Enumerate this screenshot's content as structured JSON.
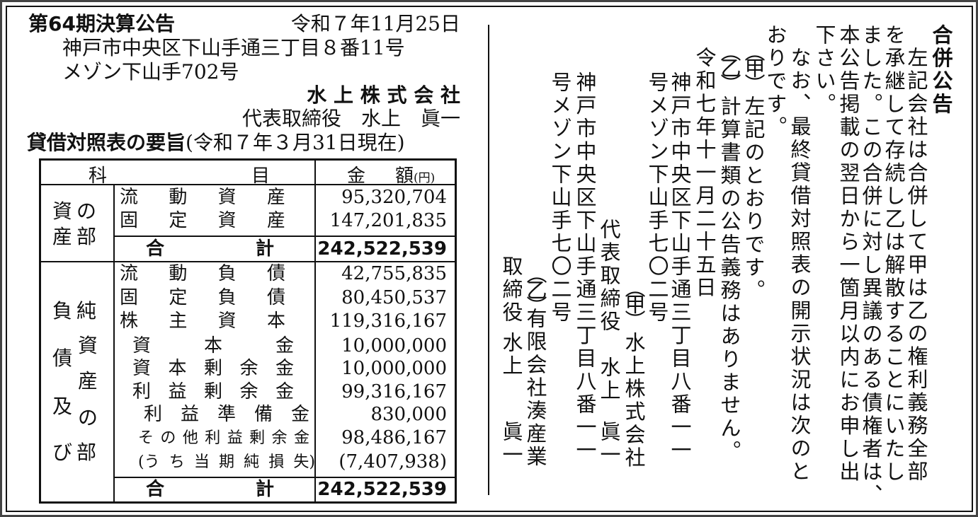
{
  "settlement_notice": {
    "title": "第64期決算公告",
    "date": "令和７年11月25日",
    "address_line1": "神戸市中央区下山手通三丁目８番11号",
    "address_line2": "メゾン下山手702号",
    "company": "水 上 株 式 会 社",
    "representative": "代表取締役　水上　眞一",
    "bs_title": "貸借対照表の要旨",
    "bs_date": "(令和７年３月31日現在)"
  },
  "table": {
    "header": {
      "kamoku_1": "科",
      "kamoku_2": "目",
      "amount_1": "金",
      "amount_2": "額",
      "unit": "(円)"
    },
    "assets_section": [
      "資",
      "の",
      "産",
      "部"
    ],
    "liabilities_section": [
      "負",
      "純",
      "資",
      "債",
      "産",
      "及",
      "の",
      "び",
      "部"
    ],
    "rows": [
      {
        "label": [
          "流",
          "動",
          "資",
          "産"
        ],
        "value": "95,320,704"
      },
      {
        "label": [
          "固",
          "定",
          "資",
          "産"
        ],
        "value": "147,201,835"
      },
      {
        "label": [
          "合",
          "計"
        ],
        "value": "242,522,539",
        "total": true
      },
      {
        "label": [
          "流",
          "動",
          "負",
          "債"
        ],
        "value": "42,755,835"
      },
      {
        "label": [
          "固",
          "定",
          "負",
          "債"
        ],
        "value": "80,450,537"
      },
      {
        "label": [
          "株",
          "主",
          "資",
          "本"
        ],
        "value": "119,316,167"
      },
      {
        "label": [
          "資",
          "本",
          "金"
        ],
        "value": "10,000,000"
      },
      {
        "label": [
          "資",
          "本",
          "剰",
          "余",
          "金"
        ],
        "value": "10,000,000"
      },
      {
        "label": [
          "利",
          "益",
          "剰",
          "余",
          "金"
        ],
        "value": "99,316,167"
      },
      {
        "label": [
          "利",
          "益",
          "準",
          "備",
          "金"
        ],
        "value": "830,000"
      },
      {
        "label": [
          "そ",
          "の",
          "他",
          "利",
          "益",
          "剰",
          "余",
          "金"
        ],
        "value": "98,486,167"
      },
      {
        "label": [
          "(う",
          "ち",
          "当",
          "期",
          "純",
          "損",
          "失)"
        ],
        "value": "(7,407,938)"
      },
      {
        "label": [
          "合",
          "計"
        ],
        "value": "242,522,539",
        "total": true
      }
    ]
  },
  "merger_notice": {
    "title": "合併公告",
    "body": [
      "左記会社は合併して甲は乙の権利義務全部",
      "を承継して存続し乙は解散することにいたし",
      "ました。この合併に対し異議のある債権者は、",
      "本公告掲載の翌日から一箇月以内にお申し出",
      "下さい。",
      "なお、最終貸借対照表の開示状況は次のと",
      "おりです。"
    ],
    "party_a_mark": "（甲）",
    "party_a_status": "左記のとおりです。",
    "party_b_mark": "（乙）",
    "party_b_status": "計算書類の公告義務はありません。",
    "date": "令和七年十一月二十五日",
    "party_a": {
      "address1": "神戸市中央区下山手通三丁目八番一一",
      "address2": "号メゾン下山手七〇二号",
      "mark": "（甲）",
      "company": "水上株式会社",
      "title": "代表取締役",
      "name_family": "水上",
      "name_given": "眞一"
    },
    "party_b": {
      "address1": "神戸市中央区下山手通三丁目八番一一",
      "address2": "号メゾン下山手七〇二号",
      "mark": "（乙）",
      "company": "有限会社湊産業",
      "title": "取締役",
      "name_family": "水上",
      "name_given": "眞一"
    }
  }
}
